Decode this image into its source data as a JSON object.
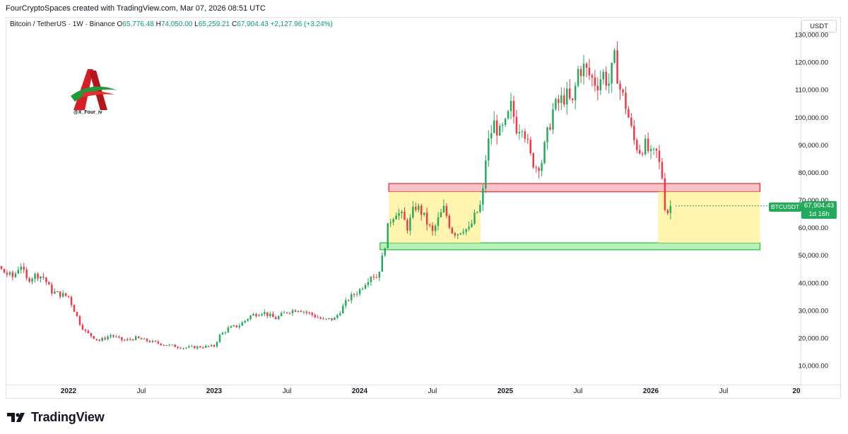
{
  "header": {
    "title": "FourCryptoSpaces created with TradingView.com, Mar 07, 2026 08:51 UTC"
  },
  "legend": {
    "symbol": "Bitcoin / TetherUS · 1W · Binance",
    "o_label": "O",
    "o_value": "65,776.48",
    "h_label": "H",
    "h_value": "74,050.00",
    "l_label": "L",
    "l_value": "65,259.21",
    "c_label": "C",
    "c_value": "67,904.43",
    "change": "+2,127.96 (+3.24%)"
  },
  "currency_label": "USDT",
  "price_tag": {
    "symbol": "BTCUSDT",
    "price": "67,904.43",
    "countdown": "1d 16h"
  },
  "watermark": {
    "handle": "@X_Four_iv"
  },
  "footer": {
    "brand": "TradingView"
  },
  "colors": {
    "up": "#22ab5a",
    "down": "#f23645",
    "resistance": "#f23645",
    "support": "#22ab5a",
    "range": "#fff59d"
  },
  "chart_data": {
    "type": "candlestick",
    "y_ticks": [
      "130,000.00",
      "120,000.00",
      "110,000.00",
      "100,000.00",
      "90,000.00",
      "80,000.00",
      "70,000.00",
      "60,000.00",
      "50,000.00",
      "40,000.00",
      "30,000.00",
      "20,000.00",
      "10,000.00"
    ],
    "y_tick_values": [
      130000,
      120000,
      110000,
      100000,
      90000,
      80000,
      70000,
      60000,
      50000,
      40000,
      30000,
      20000,
      10000
    ],
    "ylim": [
      4000,
      134000
    ],
    "x_ticks": [
      {
        "label": "2022",
        "t": 2022.0,
        "bold": true
      },
      {
        "label": "Jul",
        "t": 2022.5,
        "bold": false
      },
      {
        "label": "2023",
        "t": 2023.0,
        "bold": true
      },
      {
        "label": "Jul",
        "t": 2023.5,
        "bold": false
      },
      {
        "label": "2024",
        "t": 2024.0,
        "bold": true
      },
      {
        "label": "Jul",
        "t": 2024.5,
        "bold": false
      },
      {
        "label": "2025",
        "t": 2025.0,
        "bold": true
      },
      {
        "label": "Jul",
        "t": 2025.5,
        "bold": false
      },
      {
        "label": "2026",
        "t": 2026.0,
        "bold": true
      },
      {
        "label": "Jul",
        "t": 2026.5,
        "bold": false
      },
      {
        "label": "20",
        "t": 2027.0,
        "bold": true
      }
    ],
    "xlim": [
      2021.21,
      2027.0
    ],
    "zones": [
      {
        "name": "resistance",
        "t0": 2024.2,
        "t1": 2026.75,
        "y0": 73000,
        "y1": 76000
      },
      {
        "name": "support",
        "t0": 2024.14,
        "t1": 2026.75,
        "y0": 52000,
        "y1": 54500
      },
      {
        "name": "range-2024",
        "t0": 2024.2,
        "t1": 2024.83,
        "y0": 54500,
        "y1": 73000
      },
      {
        "name": "range-2026",
        "t0": 2026.05,
        "t1": 2026.75,
        "y0": 54500,
        "y1": 73000
      }
    ],
    "anchors": [
      [
        2021.21,
        46000
      ],
      [
        2021.26,
        56000
      ],
      [
        2021.29,
        62000
      ],
      [
        2021.33,
        60000
      ],
      [
        2021.38,
        66000
      ],
      [
        2021.42,
        55000
      ],
      [
        2021.48,
        48000
      ],
      [
        2021.55,
        44000
      ],
      [
        2021.62,
        42000
      ],
      [
        2021.67,
        47000
      ],
      [
        2021.71,
        41000
      ],
      [
        2021.78,
        43000
      ],
      [
        2021.83,
        42000
      ],
      [
        2021.88,
        37000
      ],
      [
        2021.93,
        36000
      ],
      [
        2022.0,
        35000
      ],
      [
        2022.08,
        25000
      ],
      [
        2022.12,
        22000
      ],
      [
        2022.21,
        19000
      ],
      [
        2022.29,
        21000
      ],
      [
        2022.38,
        19000
      ],
      [
        2022.46,
        20000
      ],
      [
        2022.58,
        18500
      ],
      [
        2022.67,
        17500
      ],
      [
        2022.79,
        16500
      ],
      [
        2022.92,
        16800
      ],
      [
        2023.0,
        17000
      ],
      [
        2023.04,
        21000
      ],
      [
        2023.1,
        23500
      ],
      [
        2023.17,
        24500
      ],
      [
        2023.25,
        28000
      ],
      [
        2023.33,
        29500
      ],
      [
        2023.42,
        27000
      ],
      [
        2023.5,
        29500
      ],
      [
        2023.58,
        30500
      ],
      [
        2023.67,
        28500
      ],
      [
        2023.75,
        26500
      ],
      [
        2023.83,
        27000
      ],
      [
        2023.92,
        34000
      ],
      [
        2024.0,
        37500
      ],
      [
        2024.08,
        43000
      ],
      [
        2024.12,
        42000
      ],
      [
        2024.16,
        50000
      ],
      [
        2024.2,
        62000
      ],
      [
        2024.25,
        66000
      ],
      [
        2024.29,
        64000
      ],
      [
        2024.33,
        60000
      ],
      [
        2024.38,
        68000
      ],
      [
        2024.42,
        66000
      ],
      [
        2024.46,
        62000
      ],
      [
        2024.5,
        58000
      ],
      [
        2024.54,
        63000
      ],
      [
        2024.58,
        67000
      ],
      [
        2024.63,
        59000
      ],
      [
        2024.67,
        58000
      ],
      [
        2024.71,
        60000
      ],
      [
        2024.75,
        59000
      ],
      [
        2024.79,
        64000
      ],
      [
        2024.83,
        68000
      ],
      [
        2024.85,
        74000
      ],
      [
        2024.87,
        88000
      ],
      [
        2024.92,
        98000
      ],
      [
        2024.96,
        94000
      ],
      [
        2025.0,
        97000
      ],
      [
        2025.04,
        104000
      ],
      [
        2025.08,
        96000
      ],
      [
        2025.12,
        98000
      ],
      [
        2025.17,
        86000
      ],
      [
        2025.21,
        82000
      ],
      [
        2025.25,
        84000
      ],
      [
        2025.29,
        94000
      ],
      [
        2025.33,
        103000
      ],
      [
        2025.38,
        106000
      ],
      [
        2025.42,
        108000
      ],
      [
        2025.46,
        104000
      ],
      [
        2025.5,
        117000
      ],
      [
        2025.54,
        118000
      ],
      [
        2025.58,
        115000
      ],
      [
        2025.63,
        112000
      ],
      [
        2025.67,
        116000
      ],
      [
        2025.71,
        112000
      ],
      [
        2025.75,
        121000
      ],
      [
        2025.79,
        110000
      ],
      [
        2025.83,
        104000
      ],
      [
        2025.88,
        92000
      ],
      [
        2025.92,
        88000
      ],
      [
        2025.96,
        90000
      ],
      [
        2026.0,
        86000
      ],
      [
        2026.04,
        87000
      ],
      [
        2026.08,
        78000
      ],
      [
        2026.1,
        66000
      ],
      [
        2026.13,
        65800
      ],
      [
        2026.15,
        67900
      ]
    ],
    "last_close": 67904.43
  }
}
